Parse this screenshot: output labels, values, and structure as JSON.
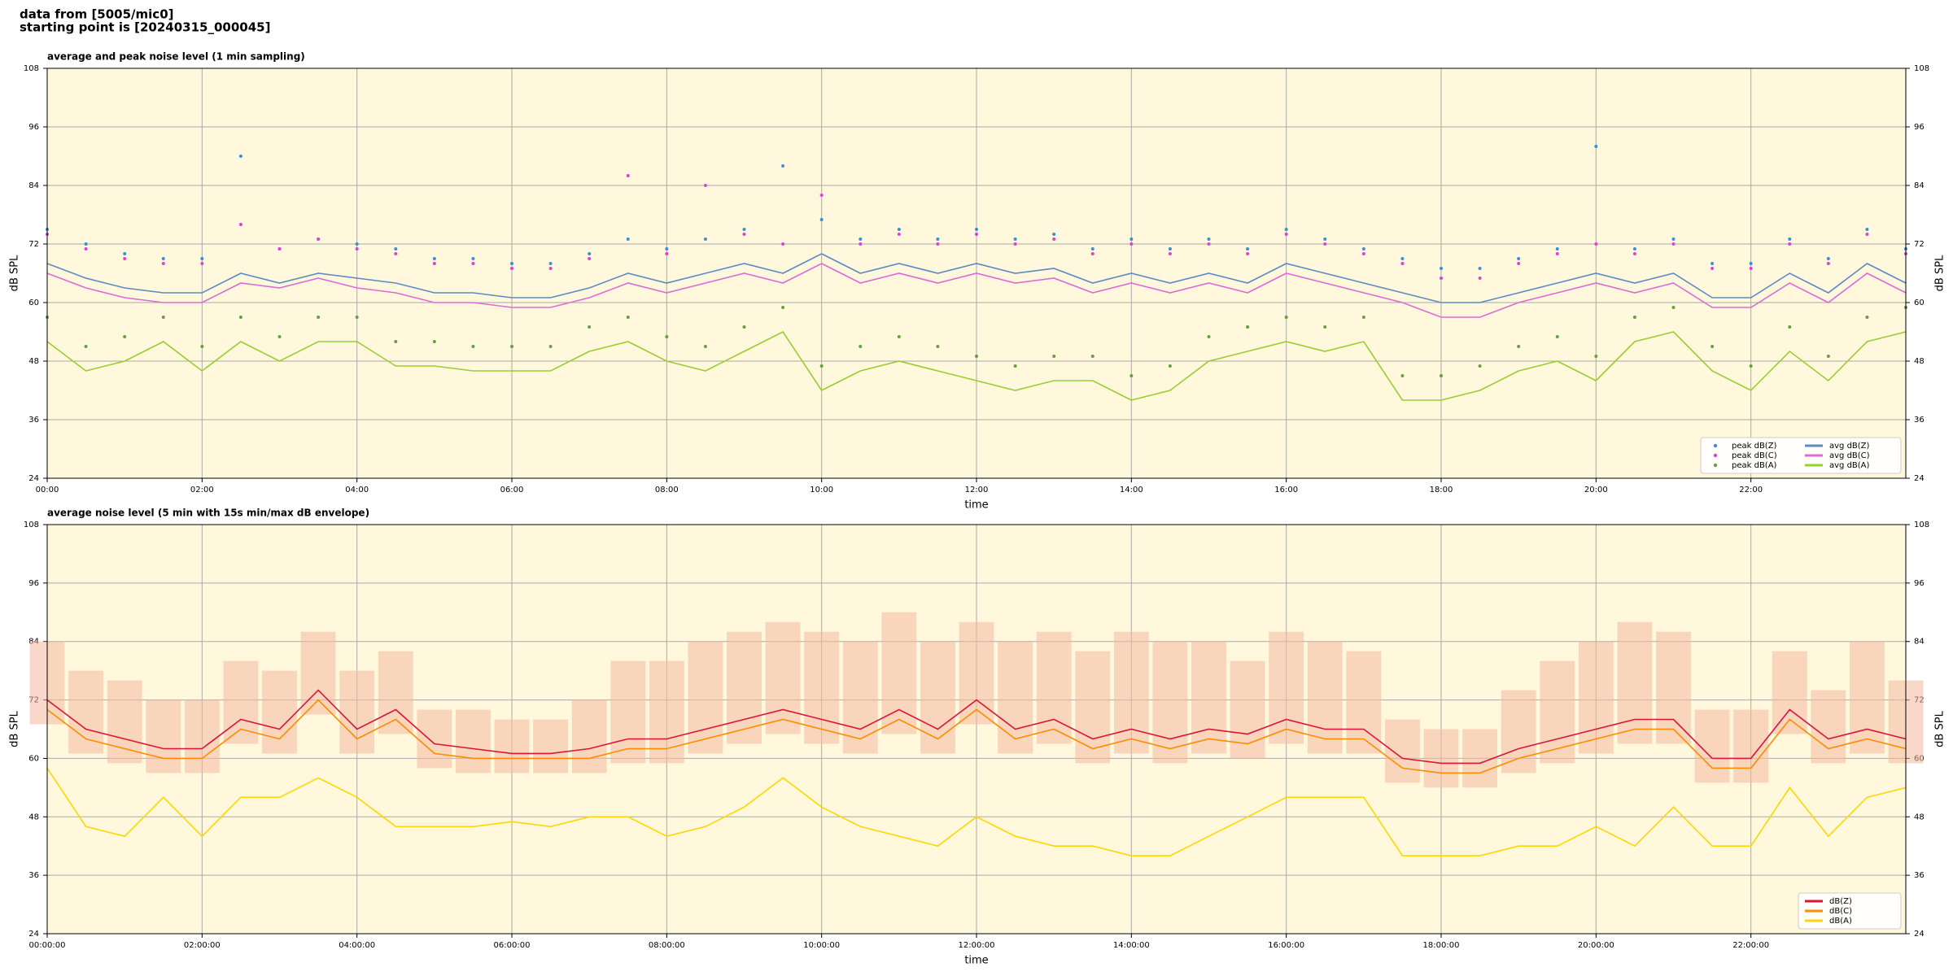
{
  "header": {
    "line1": "data from [5005/mic0]",
    "line2": "starting point is [20240315_000045]"
  },
  "chart_data": [
    {
      "type": "line",
      "title": "average and peak noise level (1 min sampling)",
      "x_label": "time",
      "y_label": "dB SPL",
      "x": [
        0,
        0.5,
        1,
        1.5,
        2,
        2.5,
        3,
        3.5,
        4,
        4.5,
        5,
        5.5,
        6,
        6.5,
        7,
        7.5,
        8,
        8.5,
        9,
        9.5,
        10,
        10.5,
        11,
        11.5,
        12,
        12.5,
        13,
        13.5,
        14,
        14.5,
        15,
        15.5,
        16,
        16.5,
        17,
        17.5,
        18,
        18.5,
        19,
        19.5,
        20,
        20.5,
        21,
        21.5,
        22,
        22.5,
        23,
        23.5,
        24
      ],
      "xlim": [
        0,
        24
      ],
      "ylim": [
        24,
        108
      ],
      "yticks": [
        24,
        36,
        48,
        60,
        72,
        84,
        96,
        108
      ],
      "xticks": [
        {
          "value": 0,
          "label": "00:00"
        },
        {
          "value": 2,
          "label": "02:00"
        },
        {
          "value": 4,
          "label": "04:00"
        },
        {
          "value": 6,
          "label": "06:00"
        },
        {
          "value": 8,
          "label": "08:00"
        },
        {
          "value": 10,
          "label": "10:00"
        },
        {
          "value": 12,
          "label": "12:00"
        },
        {
          "value": 14,
          "label": "14:00"
        },
        {
          "value": 16,
          "label": "16:00"
        },
        {
          "value": 18,
          "label": "18:00"
        },
        {
          "value": 20,
          "label": "20:00"
        },
        {
          "value": 22,
          "label": "22:00"
        }
      ],
      "grid": true,
      "background": "#fff8dc",
      "legend": "lower right",
      "legend_columns": 2,
      "series": [
        {
          "name": "peak dB(Z)",
          "mode": "points",
          "color": "#3a8fd8",
          "values": [
            75,
            72,
            70,
            69,
            69,
            90,
            71,
            73,
            72,
            71,
            69,
            69,
            68,
            68,
            70,
            73,
            71,
            73,
            75,
            88,
            77,
            73,
            75,
            73,
            75,
            73,
            74,
            71,
            73,
            71,
            73,
            71,
            75,
            73,
            71,
            69,
            67,
            67,
            69,
            71,
            92,
            71,
            73,
            68,
            68,
            73,
            69,
            75,
            71
          ]
        },
        {
          "name": "peak dB(C)",
          "mode": "points",
          "color": "#e040d8",
          "values": [
            74,
            71,
            69,
            68,
            68,
            76,
            71,
            73,
            71,
            70,
            68,
            68,
            67,
            67,
            69,
            86,
            70,
            84,
            74,
            72,
            82,
            72,
            74,
            72,
            74,
            72,
            73,
            70,
            72,
            70,
            72,
            70,
            74,
            72,
            70,
            68,
            65,
            65,
            68,
            70,
            72,
            70,
            72,
            67,
            67,
            72,
            68,
            74,
            70
          ]
        },
        {
          "name": "peak dB(A)",
          "mode": "points",
          "color": "#66a040",
          "values": [
            57,
            51,
            53,
            57,
            51,
            57,
            53,
            57,
            57,
            52,
            52,
            51,
            51,
            51,
            55,
            57,
            53,
            51,
            55,
            59,
            47,
            51,
            53,
            51,
            49,
            47,
            49,
            49,
            45,
            47,
            53,
            55,
            57,
            55,
            57,
            45,
            45,
            47,
            51,
            53,
            49,
            57,
            59,
            51,
            47,
            55,
            49,
            57,
            59
          ]
        },
        {
          "name": "avg dB(Z)",
          "mode": "line",
          "color": "#5b8ac4",
          "values": [
            68,
            65,
            63,
            62,
            62,
            66,
            64,
            66,
            65,
            64,
            62,
            62,
            61,
            61,
            63,
            66,
            64,
            66,
            68,
            66,
            70,
            66,
            68,
            66,
            68,
            66,
            67,
            64,
            66,
            64,
            66,
            64,
            68,
            66,
            64,
            62,
            60,
            60,
            62,
            64,
            66,
            64,
            66,
            61,
            61,
            66,
            62,
            68,
            64
          ]
        },
        {
          "name": "avg dB(C)",
          "mode": "line",
          "color": "#dd6ad6",
          "values": [
            66,
            63,
            61,
            60,
            60,
            64,
            63,
            65,
            63,
            62,
            60,
            60,
            59,
            59,
            61,
            64,
            62,
            64,
            66,
            64,
            68,
            64,
            66,
            64,
            66,
            64,
            65,
            62,
            64,
            62,
            64,
            62,
            66,
            64,
            62,
            60,
            57,
            57,
            60,
            62,
            64,
            62,
            64,
            59,
            59,
            64,
            60,
            66,
            62
          ]
        },
        {
          "name": "avg dB(A)",
          "mode": "line",
          "color": "#9acd32",
          "values": [
            52,
            46,
            48,
            52,
            46,
            52,
            48,
            52,
            52,
            47,
            47,
            46,
            46,
            46,
            50,
            52,
            48,
            46,
            50,
            54,
            42,
            46,
            48,
            46,
            44,
            42,
            44,
            44,
            40,
            42,
            48,
            50,
            52,
            50,
            52,
            40,
            40,
            42,
            46,
            48,
            44,
            52,
            54,
            46,
            42,
            50,
            44,
            52,
            54
          ]
        }
      ]
    },
    {
      "type": "line",
      "title": "average noise level (5 min with 15s min/max dB envelope)",
      "x_label": "time",
      "y_label": "dB SPL",
      "x": [
        0,
        0.5,
        1,
        1.5,
        2,
        2.5,
        3,
        3.5,
        4,
        4.5,
        5,
        5.5,
        6,
        6.5,
        7,
        7.5,
        8,
        8.5,
        9,
        9.5,
        10,
        10.5,
        11,
        11.5,
        12,
        12.5,
        13,
        13.5,
        14,
        14.5,
        15,
        15.5,
        16,
        16.5,
        17,
        17.5,
        18,
        18.5,
        19,
        19.5,
        20,
        20.5,
        21,
        21.5,
        22,
        22.5,
        23,
        23.5,
        24
      ],
      "xlim": [
        0,
        24
      ],
      "ylim": [
        24,
        108
      ],
      "yticks": [
        24,
        36,
        48,
        60,
        72,
        84,
        96,
        108
      ],
      "xticks": [
        {
          "value": 0,
          "label": "00:00:00"
        },
        {
          "value": 2,
          "label": "02:00:00"
        },
        {
          "value": 4,
          "label": "04:00:00"
        },
        {
          "value": 6,
          "label": "06:00:00"
        },
        {
          "value": 8,
          "label": "08:00:00"
        },
        {
          "value": 10,
          "label": "10:00:00"
        },
        {
          "value": 12,
          "label": "12:00:00"
        },
        {
          "value": 14,
          "label": "14:00:00"
        },
        {
          "value": 16,
          "label": "16:00:00"
        },
        {
          "value": 18,
          "label": "18:00:00"
        },
        {
          "value": 20,
          "label": "20:00:00"
        },
        {
          "value": 22,
          "label": "22:00:00"
        }
      ],
      "grid": true,
      "background": "#fff8dc",
      "legend": "lower right",
      "legend_columns": 1,
      "envelope": {
        "color": "#f4b8a0",
        "lower": [
          67,
          61,
          59,
          57,
          57,
          63,
          61,
          69,
          61,
          65,
          58,
          57,
          57,
          57,
          57,
          59,
          59,
          61,
          63,
          65,
          63,
          61,
          65,
          61,
          67,
          61,
          63,
          59,
          61,
          59,
          61,
          60,
          63,
          61,
          61,
          55,
          54,
          54,
          57,
          59,
          61,
          63,
          63,
          55,
          55,
          65,
          59,
          61,
          59
        ],
        "upper": [
          84,
          78,
          76,
          72,
          72,
          80,
          78,
          86,
          78,
          82,
          70,
          70,
          68,
          68,
          72,
          80,
          80,
          84,
          86,
          88,
          86,
          84,
          90,
          84,
          88,
          84,
          86,
          82,
          86,
          84,
          84,
          80,
          86,
          84,
          82,
          68,
          66,
          66,
          74,
          80,
          84,
          88,
          86,
          70,
          70,
          82,
          74,
          84,
          76
        ]
      },
      "series": [
        {
          "name": "dB(Z)",
          "mode": "line",
          "color": "#dc143c",
          "values": [
            72,
            66,
            64,
            62,
            62,
            68,
            66,
            74,
            66,
            70,
            63,
            62,
            61,
            61,
            62,
            64,
            64,
            66,
            68,
            70,
            68,
            66,
            70,
            66,
            72,
            66,
            68,
            64,
            66,
            64,
            66,
            65,
            68,
            66,
            66,
            60,
            59,
            59,
            62,
            64,
            66,
            68,
            68,
            60,
            60,
            70,
            64,
            66,
            64
          ]
        },
        {
          "name": "dB(C)",
          "mode": "line",
          "color": "#ff8c00",
          "values": [
            70,
            64,
            62,
            60,
            60,
            66,
            64,
            72,
            64,
            68,
            61,
            60,
            60,
            60,
            60,
            62,
            62,
            64,
            66,
            68,
            66,
            64,
            68,
            64,
            70,
            64,
            66,
            62,
            64,
            62,
            64,
            63,
            66,
            64,
            64,
            58,
            57,
            57,
            60,
            62,
            64,
            66,
            66,
            58,
            58,
            68,
            62,
            64,
            62
          ]
        },
        {
          "name": "dB(A)",
          "mode": "line",
          "color": "#ffd700",
          "values": [
            58,
            46,
            44,
            52,
            44,
            52,
            52,
            56,
            52,
            46,
            46,
            46,
            47,
            46,
            48,
            48,
            44,
            46,
            50,
            56,
            50,
            46,
            44,
            42,
            48,
            44,
            42,
            42,
            40,
            40,
            44,
            48,
            52,
            52,
            52,
            40,
            40,
            40,
            42,
            42,
            46,
            42,
            50,
            42,
            42,
            54,
            44,
            52,
            54
          ]
        }
      ]
    }
  ]
}
